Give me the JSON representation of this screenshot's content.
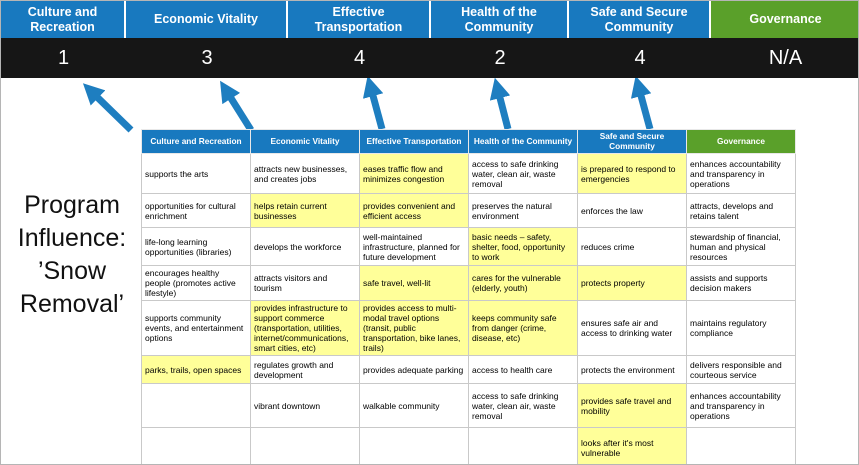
{
  "title": "Program Influence: ’Snow Removal’",
  "colors": {
    "pillar_blue": "#1879BF",
    "governance_green": "#5aa02a",
    "score_bar": "#161616",
    "highlight": "#FFFF99",
    "arrow": "#1e7ec0"
  },
  "pillars": [
    {
      "label": "Culture and Recreation",
      "score": "1",
      "accent": "blue"
    },
    {
      "label": "Economic Vitality",
      "score": "3",
      "accent": "blue"
    },
    {
      "label": "Effective Transportation",
      "score": "4",
      "accent": "blue"
    },
    {
      "label": "Health of the Community",
      "score": "2",
      "accent": "blue"
    },
    {
      "label": "Safe and Secure Community",
      "score": "4",
      "accent": "blue"
    },
    {
      "label": "Governance",
      "score": "N/A",
      "accent": "green"
    }
  ],
  "matrix": {
    "headers": [
      {
        "label": "Culture and Recreation",
        "accent": "blue"
      },
      {
        "label": "Economic Vitality",
        "accent": "blue"
      },
      {
        "label": "Effective Transportation",
        "accent": "blue"
      },
      {
        "label": "Health of the Community",
        "accent": "blue"
      },
      {
        "label": "Safe and Secure Community",
        "accent": "blue"
      },
      {
        "label": "Governance",
        "accent": "green"
      }
    ],
    "rows": [
      [
        {
          "text": "supports the arts"
        },
        {
          "text": "attracts new businesses, and creates jobs"
        },
        {
          "text": "eases traffic flow and minimizes congestion",
          "hl": true
        },
        {
          "text": "access to safe drinking water, clean air, waste removal"
        },
        {
          "text": "is prepared to respond to emergencies",
          "hl": true
        },
        {
          "text": "enhances accountability and transparency in operations"
        }
      ],
      [
        {
          "text": "opportunities for cultural enrichment"
        },
        {
          "text": "helps retain current businesses",
          "hl": true
        },
        {
          "text": "provides convenient and efficient access",
          "hl": true
        },
        {
          "text": "preserves the natural environment"
        },
        {
          "text": "enforces the law"
        },
        {
          "text": "attracts, develops and retains talent"
        }
      ],
      [
        {
          "text": "life-long learning opportunities (libraries)"
        },
        {
          "text": "develops the workforce"
        },
        {
          "text": "well-maintained infrastructure, planned for future development"
        },
        {
          "text": "basic needs – safety, shelter, food, opportunity to work",
          "hl": true
        },
        {
          "text": "reduces crime"
        },
        {
          "text": "stewardship of financial, human and physical resources"
        }
      ],
      [
        {
          "text": "encourages healthy people (promotes active lifestyle)"
        },
        {
          "text": "attracts visitors and tourism"
        },
        {
          "text": "safe travel, well-lit",
          "hl": true
        },
        {
          "text": "cares for the vulnerable (elderly, youth)",
          "hl": true
        },
        {
          "text": "protects property",
          "hl": true
        },
        {
          "text": "assists and supports decision makers"
        }
      ],
      [
        {
          "text": "supports community events, and entertainment options"
        },
        {
          "text": "provides infrastructure to support commerce (transportation, utilities, internet/communications, smart cities, etc)",
          "hl": true
        },
        {
          "text": "provides access to multi-modal travel options (transit, public transportation, bike lanes, trails)",
          "hl": true
        },
        {
          "text": "keeps community safe from danger (crime, disease, etc)",
          "hl": true
        },
        {
          "text": "ensures safe air and access to drinking water"
        },
        {
          "text": "maintains regulatory compliance"
        }
      ],
      [
        {
          "text": "parks, trails, open spaces",
          "hl": true
        },
        {
          "text": "regulates growth and development"
        },
        {
          "text": "provides adequate parking"
        },
        {
          "text": "access to health care"
        },
        {
          "text": "protects the environment"
        },
        {
          "text": "delivers responsible and courteous service"
        }
      ],
      [
        {
          "text": ""
        },
        {
          "text": "vibrant downtown"
        },
        {
          "text": "walkable community"
        },
        {
          "text": "access to safe drinking water, clean air, waste removal"
        },
        {
          "text": "provides safe travel and mobility",
          "hl": true
        },
        {
          "text": "enhances accountability and transparency in operations"
        }
      ],
      [
        {
          "text": ""
        },
        {
          "text": ""
        },
        {
          "text": ""
        },
        {
          "text": ""
        },
        {
          "text": "looks after it's most vulnerable",
          "hl": true
        },
        {
          "text": ""
        }
      ]
    ]
  }
}
